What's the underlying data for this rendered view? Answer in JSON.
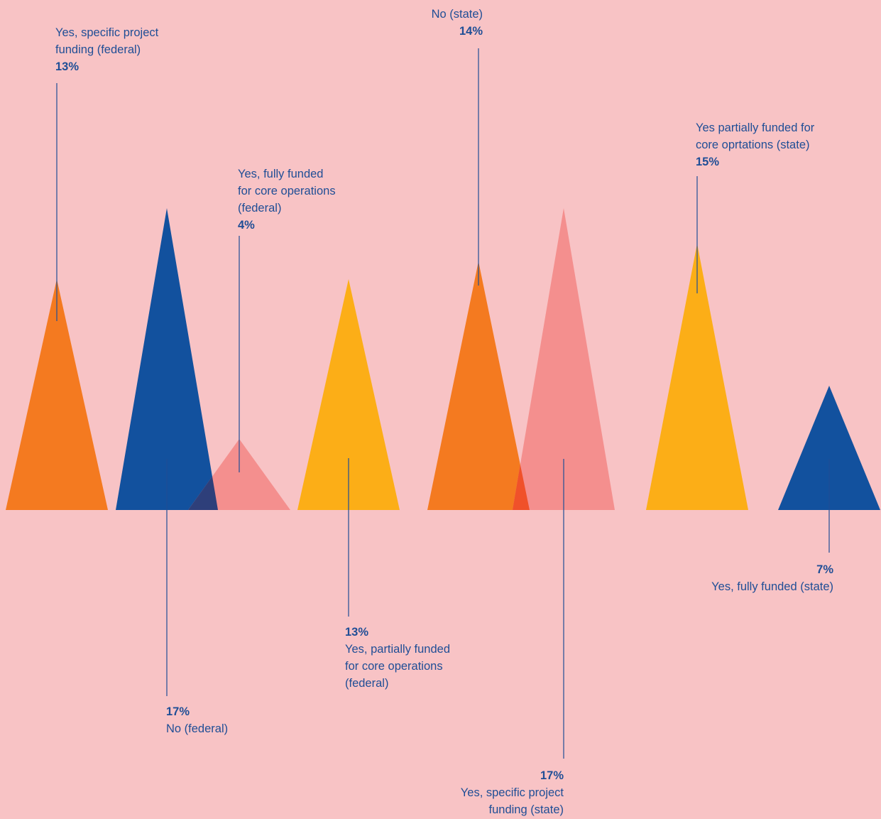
{
  "chart_data": {
    "type": "bar",
    "ylim": [
      0,
      17
    ],
    "bar_shape": "triangle",
    "series": [
      {
        "label": "Yes, specific project\nfunding (federal)",
        "value": 13,
        "value_label": "13%",
        "color": "#F47A20",
        "label_position": "above"
      },
      {
        "label": "No (federal)",
        "value": 17,
        "value_label": "17%",
        "color": "#12519E",
        "label_position": "below"
      },
      {
        "label": "Yes, fully funded\nfor core operations\n(federal)",
        "value": 4,
        "value_label": "4%",
        "color": "#F48F8E",
        "label_position": "above"
      },
      {
        "label": "Yes, partially funded\nfor core operations\n(federal)",
        "value": 13,
        "value_label": "13%",
        "color": "#FCAE17",
        "label_position": "below"
      },
      {
        "label": "No (state)",
        "value": 14,
        "value_label": "14%",
        "color": "#F47A20",
        "label_position": "above"
      },
      {
        "label": "Yes, specific project\nfunding (state)",
        "value": 17,
        "value_label": "17%",
        "color": "#F48F8E",
        "label_position": "below"
      },
      {
        "label": "Yes partially funded for\ncore oprtations (state)",
        "value": 15,
        "value_label": "15%",
        "color": "#FCAE17",
        "label_position": "above"
      },
      {
        "label": "Yes, fully funded (state)",
        "value": 7,
        "value_label": "7%",
        "color": "#12519E",
        "label_position": "below"
      }
    ],
    "overlap_colors": {
      "blue_pink": "#2E3F7A",
      "orange_pink": "#F0512A"
    },
    "leader_line_color": "#1F4E96"
  }
}
